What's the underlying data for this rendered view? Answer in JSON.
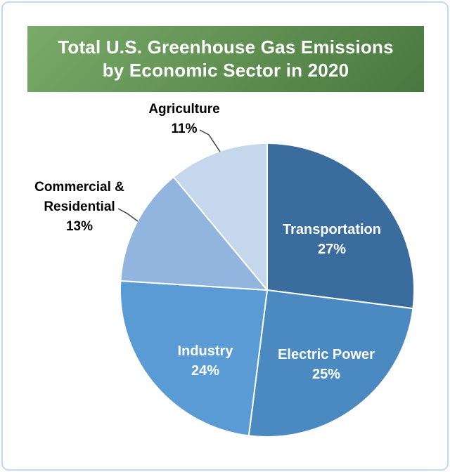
{
  "page": {
    "background_color": "#ffffff",
    "border_color": "#c3d8f2"
  },
  "banner": {
    "title_line1": "Total U.S. Greenhouse Gas Emissions",
    "title_line2": "by Economic Sector in 2020",
    "text_color": "#ffffff",
    "gradient_top": "#7aab6a",
    "gradient_bottom": "#497840"
  },
  "chart_data": {
    "type": "pie",
    "title": "Total U.S. Greenhouse Gas Emissions by Economic Sector in 2020",
    "start_angle_deg": 0,
    "direction": "clockwise",
    "value_suffix": "%",
    "legend": "none",
    "slice_border_color": "#ffffff",
    "leader_line_color": "#404040",
    "slices": [
      {
        "label": "Transportation",
        "value": 27,
        "color": "#3A6D9E",
        "label_position": "inside",
        "label_color": "#ffffff"
      },
      {
        "label": "Electric Power",
        "value": 25,
        "color": "#4B8AC1",
        "label_position": "inside",
        "label_color": "#ffffff"
      },
      {
        "label": "Industry",
        "value": 24,
        "color": "#5B9BD5",
        "label_position": "inside",
        "label_color": "#ffffff"
      },
      {
        "label": "Commercial & Residential",
        "value": 13,
        "color": "#92B5E0",
        "label_position": "outside",
        "label_color": "#000000"
      },
      {
        "label": "Agriculture",
        "value": 11,
        "color": "#C4D7ED",
        "label_position": "outside",
        "label_color": "#000000"
      }
    ]
  }
}
